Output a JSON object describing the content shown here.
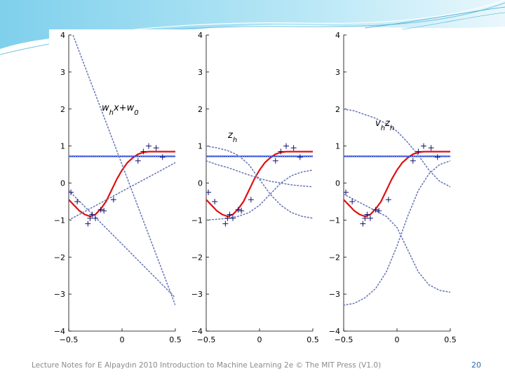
{
  "colors": {
    "accent_top": "#8fd6ef",
    "red_curve": "#e01010",
    "blue": "#1f3fd0",
    "dotted": "#6a78b8",
    "marker": "#101070"
  },
  "footer": {
    "text": "Lecture Notes for E Alpaydın 2010 Introduction to Machine Learning 2e © The MIT Press (V1.0)",
    "page": "20"
  },
  "chart_data": [
    {
      "type": "line",
      "annotation": "w_h x+w_0",
      "annotation_parts": [
        "w",
        "h",
        "x+w",
        "0"
      ],
      "xlim": [
        -0.5,
        0.5
      ],
      "ylim": [
        -4,
        4
      ],
      "xticks": [
        "-0.5",
        "0",
        "0.5"
      ],
      "yticks": [
        "4",
        "3",
        "2",
        "1",
        "0",
        "-1",
        "-2",
        "-3",
        "-4"
      ],
      "series": [
        {
          "role": "fit",
          "x": [
            -0.5,
            -0.45,
            -0.4,
            -0.35,
            -0.3,
            -0.25,
            -0.2,
            -0.15,
            -0.1,
            -0.05,
            0,
            0.05,
            0.1,
            0.15,
            0.2,
            0.25,
            0.3,
            0.35,
            0.4,
            0.45,
            0.5
          ],
          "y": [
            -0.45,
            -0.6,
            -0.75,
            -0.85,
            -0.9,
            -0.85,
            -0.7,
            -0.5,
            -0.2,
            0.1,
            0.35,
            0.55,
            0.68,
            0.78,
            0.83,
            0.85,
            0.85,
            0.85,
            0.85,
            0.85,
            0.85
          ]
        },
        {
          "role": "bias",
          "x": [
            -0.5,
            0.5
          ],
          "y": [
            0.72,
            0.72
          ]
        },
        {
          "role": "hidden",
          "x": [
            -0.5,
            0.5
          ],
          "y": [
            4.3,
            -3.3
          ]
        },
        {
          "role": "hidden",
          "x": [
            -0.5,
            0.5
          ],
          "y": [
            -0.2,
            -3.1
          ]
        },
        {
          "role": "hidden",
          "x": [
            -0.5,
            0.5
          ],
          "y": [
            -1.0,
            0.55
          ]
        }
      ],
      "points": [
        [
          -0.48,
          -0.25
        ],
        [
          -0.42,
          -0.5
        ],
        [
          -0.32,
          -1.1
        ],
        [
          -0.3,
          -0.95
        ],
        [
          -0.28,
          -0.85
        ],
        [
          -0.25,
          -0.95
        ],
        [
          -0.2,
          -0.72
        ],
        [
          -0.17,
          -0.75
        ],
        [
          -0.08,
          -0.45
        ],
        [
          0.15,
          0.6
        ],
        [
          0.2,
          0.85
        ],
        [
          0.25,
          1.0
        ],
        [
          0.32,
          0.95
        ],
        [
          0.38,
          0.7
        ]
      ]
    },
    {
      "type": "line",
      "annotation": "z_h",
      "annotation_parts": [
        "z",
        "h"
      ],
      "xlim": [
        -0.5,
        0.5
      ],
      "ylim": [
        -4,
        4
      ],
      "xticks": [
        "-0.5",
        "0",
        "0.5"
      ],
      "yticks": [
        "4",
        "3",
        "2",
        "1",
        "0",
        "-1",
        "-2",
        "-3",
        "-4"
      ],
      "series": [
        {
          "role": "fit",
          "x": [
            -0.5,
            -0.45,
            -0.4,
            -0.35,
            -0.3,
            -0.25,
            -0.2,
            -0.15,
            -0.1,
            -0.05,
            0,
            0.05,
            0.1,
            0.15,
            0.2,
            0.25,
            0.3,
            0.35,
            0.4,
            0.45,
            0.5
          ],
          "y": [
            -0.45,
            -0.6,
            -0.75,
            -0.85,
            -0.9,
            -0.85,
            -0.7,
            -0.5,
            -0.2,
            0.1,
            0.35,
            0.55,
            0.68,
            0.78,
            0.83,
            0.85,
            0.85,
            0.85,
            0.85,
            0.85,
            0.85
          ]
        },
        {
          "role": "bias",
          "x": [
            -0.5,
            0.5
          ],
          "y": [
            0.72,
            0.72
          ]
        },
        {
          "role": "hidden",
          "x": [
            -0.5,
            -0.4,
            -0.3,
            -0.2,
            -0.1,
            0,
            0.1,
            0.2,
            0.3,
            0.4,
            0.5
          ],
          "y": [
            1.0,
            0.95,
            0.88,
            0.75,
            0.5,
            0.1,
            -0.3,
            -0.6,
            -0.8,
            -0.9,
            -0.95
          ]
        },
        {
          "role": "hidden",
          "x": [
            -0.5,
            -0.4,
            -0.3,
            -0.2,
            -0.1,
            0,
            0.1,
            0.2,
            0.3,
            0.4,
            0.5
          ],
          "y": [
            0.6,
            0.5,
            0.42,
            0.32,
            0.22,
            0.12,
            0.05,
            0.0,
            -0.05,
            -0.08,
            -0.1
          ]
        },
        {
          "role": "hidden",
          "x": [
            -0.5,
            -0.4,
            -0.3,
            -0.2,
            -0.1,
            0,
            0.1,
            0.2,
            0.3,
            0.4,
            0.5
          ],
          "y": [
            -1.0,
            -0.98,
            -0.95,
            -0.9,
            -0.8,
            -0.6,
            -0.3,
            0.0,
            0.2,
            0.3,
            0.35
          ]
        }
      ],
      "points": [
        [
          -0.48,
          -0.25
        ],
        [
          -0.42,
          -0.5
        ],
        [
          -0.32,
          -1.1
        ],
        [
          -0.3,
          -0.95
        ],
        [
          -0.28,
          -0.85
        ],
        [
          -0.25,
          -0.95
        ],
        [
          -0.2,
          -0.72
        ],
        [
          -0.17,
          -0.75
        ],
        [
          -0.08,
          -0.45
        ],
        [
          0.15,
          0.6
        ],
        [
          0.2,
          0.85
        ],
        [
          0.25,
          1.0
        ],
        [
          0.32,
          0.95
        ],
        [
          0.38,
          0.7
        ]
      ]
    },
    {
      "type": "line",
      "annotation": "v_h z_h",
      "annotation_parts": [
        "v",
        "h",
        "z",
        "h"
      ],
      "xlim": [
        -0.5,
        0.5
      ],
      "ylim": [
        -4,
        4
      ],
      "xticks": [
        "-0.5",
        "0",
        "0.5"
      ],
      "yticks": [
        "4",
        "3",
        "2",
        "1",
        "0",
        "-1",
        "-2",
        "-3",
        "-4"
      ],
      "series": [
        {
          "role": "fit",
          "x": [
            -0.5,
            -0.45,
            -0.4,
            -0.35,
            -0.3,
            -0.25,
            -0.2,
            -0.15,
            -0.1,
            -0.05,
            0,
            0.05,
            0.1,
            0.15,
            0.2,
            0.25,
            0.3,
            0.35,
            0.4,
            0.45,
            0.5
          ],
          "y": [
            -0.45,
            -0.6,
            -0.75,
            -0.85,
            -0.9,
            -0.85,
            -0.7,
            -0.5,
            -0.2,
            0.1,
            0.35,
            0.55,
            0.68,
            0.78,
            0.83,
            0.85,
            0.85,
            0.85,
            0.85,
            0.85,
            0.85
          ]
        },
        {
          "role": "bias",
          "x": [
            -0.5,
            0.5
          ],
          "y": [
            0.72,
            0.72
          ]
        },
        {
          "role": "hidden",
          "x": [
            -0.5,
            -0.4,
            -0.3,
            -0.2,
            -0.1,
            0,
            0.1,
            0.2,
            0.3,
            0.4,
            0.5
          ],
          "y": [
            2.0,
            1.95,
            1.85,
            1.75,
            1.6,
            1.4,
            1.1,
            0.75,
            0.35,
            0.05,
            -0.1
          ]
        },
        {
          "role": "hidden",
          "x": [
            -0.5,
            -0.4,
            -0.3,
            -0.2,
            -0.1,
            0,
            0.1,
            0.2,
            0.3,
            0.4,
            0.5
          ],
          "y": [
            -0.3,
            -0.45,
            -0.6,
            -0.75,
            -0.9,
            -1.2,
            -1.8,
            -2.4,
            -2.75,
            -2.9,
            -2.95
          ]
        },
        {
          "role": "hidden",
          "x": [
            -0.5,
            -0.4,
            -0.3,
            -0.2,
            -0.1,
            0,
            0.1,
            0.2,
            0.3,
            0.4,
            0.5
          ],
          "y": [
            -3.3,
            -3.25,
            -3.1,
            -2.85,
            -2.4,
            -1.7,
            -0.9,
            -0.2,
            0.25,
            0.5,
            0.6
          ]
        }
      ],
      "points": [
        [
          -0.48,
          -0.25
        ],
        [
          -0.42,
          -0.5
        ],
        [
          -0.32,
          -1.1
        ],
        [
          -0.3,
          -0.95
        ],
        [
          -0.28,
          -0.85
        ],
        [
          -0.25,
          -0.95
        ],
        [
          -0.2,
          -0.72
        ],
        [
          -0.17,
          -0.75
        ],
        [
          -0.08,
          -0.45
        ],
        [
          0.15,
          0.6
        ],
        [
          0.2,
          0.85
        ],
        [
          0.25,
          1.0
        ],
        [
          0.32,
          0.95
        ],
        [
          0.38,
          0.7
        ]
      ]
    }
  ]
}
